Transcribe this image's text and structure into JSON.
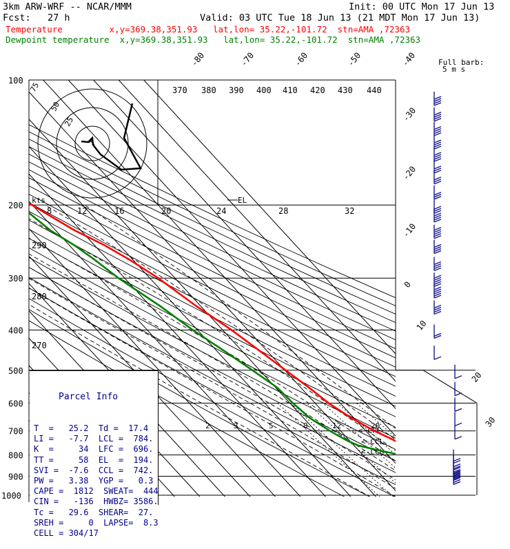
{
  "header": {
    "model": "3km ARW-WRF -- NCAR/MMM",
    "init": "Init: 00 UTC Mon 17 Jun 13",
    "fcst": "Fcst:   27 h",
    "valid": "Valid: 03 UTC Tue 18 Jun 13 (21 MDT Mon 17 Jun 13)",
    "temp_line": "Temperature         x,y=369.38,351.93   lat,lon= 35.22,-101.72  stn=AMA ,72363",
    "dew_line": "Dewpoint temperature  x,y=369.38,351.93   lat,lon= 35.22,-101.72  stn=AMA ,72363"
  },
  "colors": {
    "temperature": "#ff0000",
    "dewpoint": "#008000",
    "barbs": "#1a1a8c",
    "grid": "#000000"
  },
  "chart_data": {
    "type": "line",
    "title": "",
    "yscale": "log-pressure",
    "ylim": [
      1000,
      100
    ],
    "pressure_ticks": [
      100,
      200,
      300,
      400,
      500,
      600,
      700,
      800,
      900,
      1000
    ],
    "pressure_tick_labels": [
      "100",
      "200",
      "300",
      "400",
      "500",
      "600",
      "700",
      "800",
      "900",
      "1000"
    ],
    "isotherm_labels": [
      "-80",
      "-70",
      "-60",
      "-50",
      "-40",
      "-30",
      "-20",
      "-10",
      "0",
      "10",
      "20",
      "30",
      "40"
    ],
    "theta_labels_top": [
      "370",
      "380",
      "390",
      "400",
      "410",
      "420",
      "430",
      "440"
    ],
    "theta_labels_left": [
      "290",
      "280",
      "270"
    ],
    "mixing_ratio_labels": [
      "2",
      "3",
      "5",
      "8",
      "12",
      "20"
    ],
    "series": [
      {
        "name": "Temperature",
        "color": "#ff0000",
        "p": [
          880,
          850,
          800,
          760,
          730,
          700,
          650,
          600,
          550,
          500,
          450,
          400,
          350,
          300,
          270,
          250,
          230,
          210,
          200,
          190,
          180,
          170,
          160,
          150,
          140,
          130,
          120,
          110,
          100
        ],
        "t": [
          28.8,
          26.4,
          22.3,
          20.2,
          17.0,
          13.4,
          8.8,
          5.4,
          3.2,
          0.3,
          -2.9,
          -6.5,
          -11.8,
          -16.7,
          -21.5,
          -26.0,
          -32.5,
          -37.5,
          -40.1,
          -43.7,
          -48.4,
          -51.9,
          -55.3,
          -58.6,
          -62.7,
          -66.6,
          -70.9,
          -74.9,
          -79.0
        ]
      },
      {
        "name": "Dewpoint temperature",
        "color": "#008000",
        "p": [
          880,
          850,
          820,
          800,
          780,
          760,
          740,
          720,
          700,
          650,
          600,
          550,
          500,
          450,
          400,
          350,
          300,
          270,
          250,
          230,
          210,
          200,
          190,
          180,
          170,
          160,
          150,
          140,
          130,
          120,
          110,
          100
        ],
        "td": [
          17.1,
          17.7,
          16.9,
          14.9,
          8.2,
          1.8,
          -0.8,
          -2.6,
          -4.3,
          -7.6,
          -8.8,
          -9.4,
          -12.9,
          -17.0,
          -21.9,
          -26.2,
          -32.5,
          -35.3,
          -38.0,
          -42.1,
          -44.1,
          -44.8,
          -50.0,
          -53.3,
          -55.9,
          -59.2,
          -64.8,
          -72.5,
          -84.7,
          -90.3,
          -92.0,
          -91.0
        ]
      }
    ],
    "parcel_levels": {
      "LFC": 696,
      "CCL": 742,
      "LCL": 784,
      "EL": 194
    },
    "hodograph": {
      "units": "kts",
      "ring_labels": [
        "25",
        "50",
        "75"
      ],
      "u": [
        3,
        14,
        23,
        20,
        19,
        18,
        19,
        19,
        18,
        20,
        20,
        23
      ],
      "v": [
        4,
        -6,
        -10,
        10,
        20,
        30,
        40,
        45,
        52,
        58,
        62,
        70
      ]
    },
    "wind_barbs": {
      "legend": "Full barb:",
      "legend_value": "5 m s",
      "p": [
        900,
        875,
        850,
        825,
        800,
        700,
        650,
        600,
        550,
        500,
        450,
        400,
        350,
        320,
        300,
        275,
        250,
        230,
        210,
        200,
        185,
        170,
        160,
        150,
        140,
        130,
        120,
        110
      ],
      "speed_ms": [
        25,
        20,
        15,
        10,
        8,
        5,
        5,
        5,
        5,
        5,
        5,
        10,
        20,
        25,
        25,
        20,
        20,
        25,
        20,
        15,
        15,
        15,
        15,
        20,
        20,
        20,
        20,
        20
      ],
      "dir_deg": [
        180,
        180,
        200,
        210,
        220,
        250,
        260,
        260,
        260,
        260,
        260,
        260,
        260,
        250,
        250,
        250,
        250,
        250,
        250,
        250,
        250,
        250,
        250,
        250,
        250,
        250,
        250,
        250
      ]
    }
  },
  "mixing_ratio_axis": {
    "labels": [
      "8",
      "12",
      "16",
      "20",
      "24",
      "28",
      "32"
    ],
    "kts": "kts"
  },
  "el_tag": "EL",
  "level_tags": {
    "lfc": "LFC",
    "ccl": "CCL",
    "lcl": "LCL"
  },
  "parcel_info": {
    "title": "Parcel Info",
    "rows": [
      "T  =   25.2  Td =  17.4",
      "LI =   -7.7  LCL =  784.",
      "K  =     34  LFC =  696.",
      "TT =     58  EL  =  194.",
      "SVI =  -7.6  CCL =  742.",
      "PW =   3.38  YGP =   0.3",
      "CAPE =  1812  SWEAT=  444",
      "CIN =   -136  HWBZ= 3586.",
      "Tc =   29.6  SHEAR=  27.",
      "SREH =     0  LAPSE=  8.3",
      "CELL = 304/17"
    ]
  }
}
